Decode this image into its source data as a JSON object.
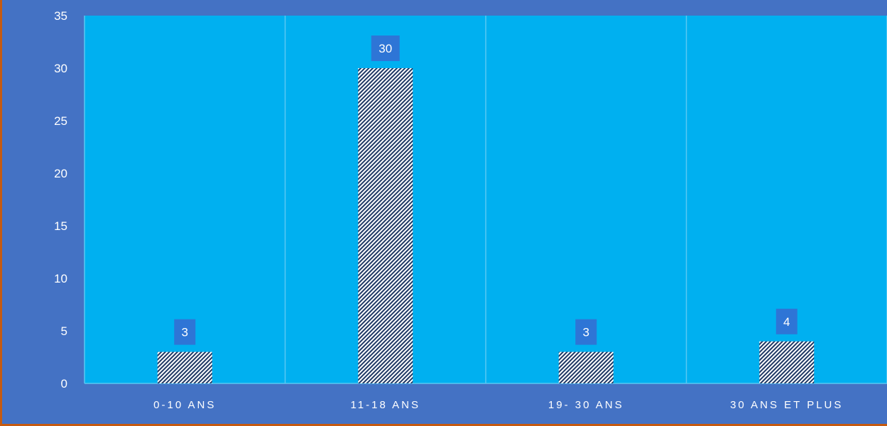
{
  "colors": {
    "frame_border": "#C55A11",
    "background": "#4472C4",
    "plot_area": "#00B0F0",
    "gridline": "#59C8F3",
    "bar_fill": "#FFFFFF",
    "bar_hatch": "#1F3864",
    "data_label_bg": "#2E75D6",
    "text": "#FFFFFF"
  },
  "chart_data": {
    "type": "bar",
    "categories": [
      "0-10 ANS",
      "11-18 ANS",
      "19- 30 ANS",
      "30 ANS ET PLUS"
    ],
    "values": [
      3,
      30,
      3,
      4
    ],
    "data_labels": [
      "3",
      "30",
      "3",
      "4"
    ],
    "y_ticks": [
      0,
      5,
      10,
      15,
      20,
      25,
      30,
      35
    ],
    "ylim": [
      0,
      35
    ],
    "title": "",
    "xlabel": "",
    "ylabel": "",
    "grid": "vertical separators",
    "legend": "none",
    "bar_pattern": "diagonal-hatch"
  }
}
